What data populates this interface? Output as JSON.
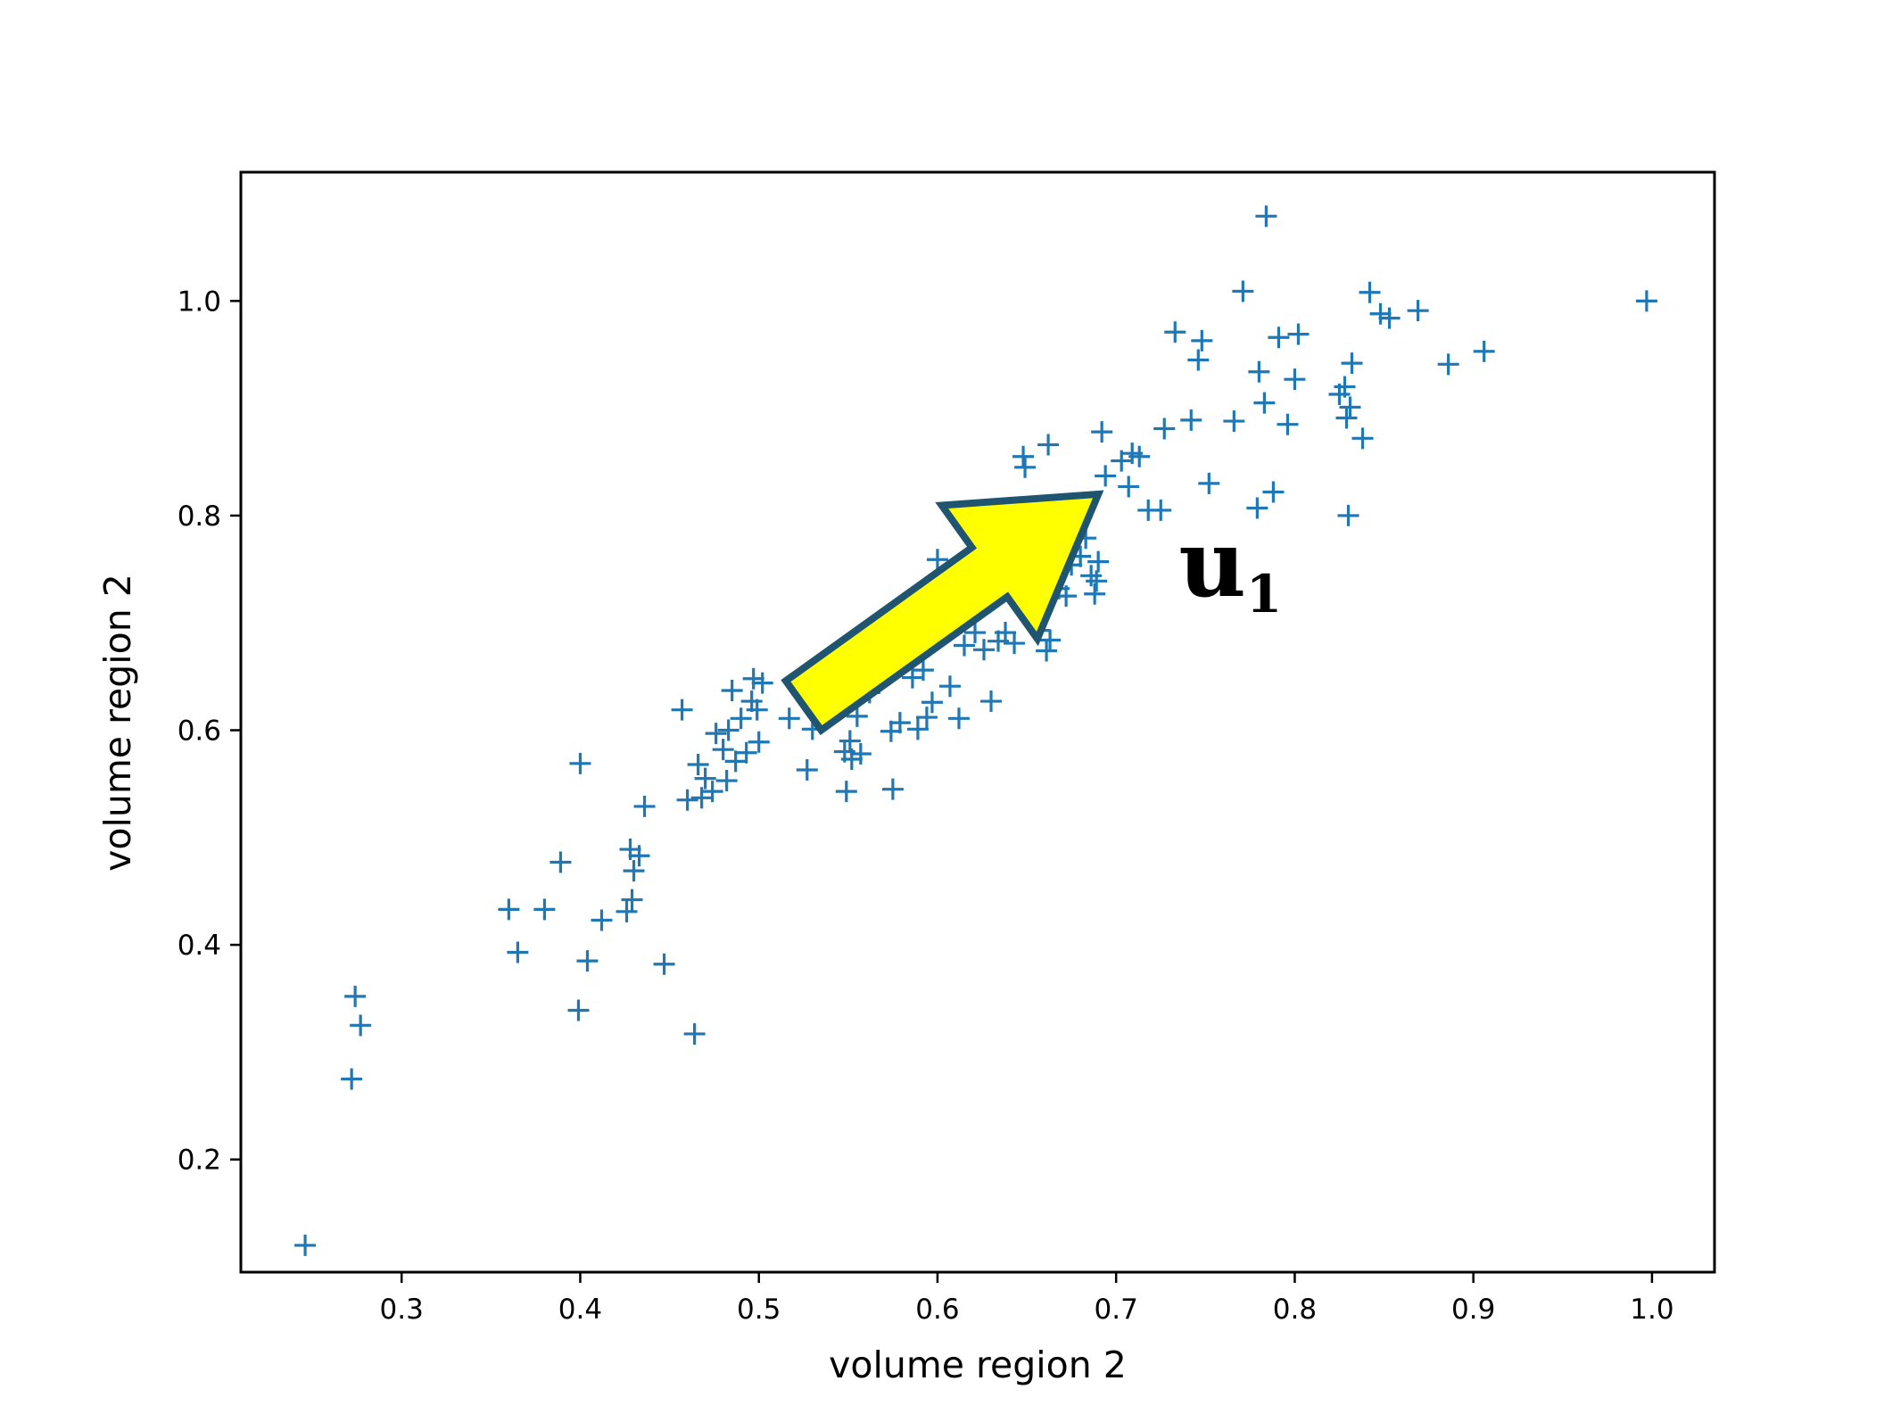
{
  "chart_data": {
    "type": "scatter",
    "xlabel": "volume region 2",
    "ylabel": "volume region 2",
    "xlim": [
      0.21,
      1.035
    ],
    "ylim": [
      0.095,
      1.12
    ],
    "x_ticks": [
      0.3,
      0.4,
      0.5,
      0.6,
      0.7,
      0.8,
      0.9,
      1.0
    ],
    "y_ticks": [
      0.2,
      0.4,
      0.6,
      0.8,
      1.0
    ],
    "grid": false,
    "legend": "none",
    "marker": "plus",
    "marker_color": "#1f77b4",
    "annotation": {
      "main": "u",
      "sub": "1",
      "x": 0.735,
      "y": 0.725
    },
    "arrow": {
      "fill_color": "#ffff00",
      "stroke_color": "#1f5570",
      "tail": [
        0.525,
        0.623
      ],
      "head": [
        0.69,
        0.82
      ]
    },
    "points": [
      [
        0.246,
        0.12
      ],
      [
        0.272,
        0.275
      ],
      [
        0.274,
        0.352
      ],
      [
        0.277,
        0.325
      ],
      [
        0.36,
        0.433
      ],
      [
        0.365,
        0.393
      ],
      [
        0.38,
        0.433
      ],
      [
        0.389,
        0.477
      ],
      [
        0.399,
        0.339
      ],
      [
        0.4,
        0.569
      ],
      [
        0.404,
        0.385
      ],
      [
        0.412,
        0.423
      ],
      [
        0.426,
        0.431
      ],
      [
        0.428,
        0.489
      ],
      [
        0.429,
        0.442
      ],
      [
        0.43,
        0.469
      ],
      [
        0.433,
        0.483
      ],
      [
        0.436,
        0.529
      ],
      [
        0.447,
        0.382
      ],
      [
        0.457,
        0.619
      ],
      [
        0.46,
        0.535
      ],
      [
        0.464,
        0.317
      ],
      [
        0.466,
        0.568
      ],
      [
        0.468,
        0.537
      ],
      [
        0.47,
        0.555
      ],
      [
        0.474,
        0.543
      ],
      [
        0.476,
        0.597
      ],
      [
        0.48,
        0.582
      ],
      [
        0.482,
        0.553
      ],
      [
        0.483,
        0.6
      ],
      [
        0.485,
        0.637
      ],
      [
        0.487,
        0.571
      ],
      [
        0.49,
        0.611
      ],
      [
        0.493,
        0.579
      ],
      [
        0.496,
        0.627
      ],
      [
        0.497,
        0.648
      ],
      [
        0.499,
        0.619
      ],
      [
        0.5,
        0.589
      ],
      [
        0.502,
        0.644
      ],
      [
        0.517,
        0.611
      ],
      [
        0.527,
        0.563
      ],
      [
        0.53,
        0.601
      ],
      [
        0.542,
        0.621
      ],
      [
        0.548,
        0.58
      ],
      [
        0.549,
        0.543
      ],
      [
        0.551,
        0.59
      ],
      [
        0.552,
        0.573
      ],
      [
        0.555,
        0.613
      ],
      [
        0.557,
        0.578
      ],
      [
        0.562,
        0.635
      ],
      [
        0.574,
        0.599
      ],
      [
        0.575,
        0.545
      ],
      [
        0.579,
        0.607
      ],
      [
        0.586,
        0.649
      ],
      [
        0.589,
        0.601
      ],
      [
        0.592,
        0.656
      ],
      [
        0.594,
        0.612
      ],
      [
        0.597,
        0.626
      ],
      [
        0.6,
        0.759
      ],
      [
        0.607,
        0.641
      ],
      [
        0.612,
        0.611
      ],
      [
        0.615,
        0.679
      ],
      [
        0.621,
        0.691
      ],
      [
        0.626,
        0.675
      ],
      [
        0.63,
        0.627
      ],
      [
        0.634,
        0.683
      ],
      [
        0.638,
        0.691
      ],
      [
        0.643,
        0.681
      ],
      [
        0.648,
        0.855
      ],
      [
        0.649,
        0.845
      ],
      [
        0.652,
        0.716
      ],
      [
        0.655,
        0.705
      ],
      [
        0.657,
        0.693
      ],
      [
        0.661,
        0.674
      ],
      [
        0.662,
        0.866
      ],
      [
        0.663,
        0.684
      ],
      [
        0.668,
        0.732
      ],
      [
        0.672,
        0.725
      ],
      [
        0.675,
        0.754
      ],
      [
        0.68,
        0.762
      ],
      [
        0.683,
        0.779
      ],
      [
        0.686,
        0.744
      ],
      [
        0.688,
        0.727
      ],
      [
        0.689,
        0.739
      ],
      [
        0.69,
        0.757
      ],
      [
        0.692,
        0.878
      ],
      [
        0.694,
        0.837
      ],
      [
        0.703,
        0.851
      ],
      [
        0.707,
        0.827
      ],
      [
        0.709,
        0.858
      ],
      [
        0.713,
        0.855
      ],
      [
        0.718,
        0.805
      ],
      [
        0.725,
        0.805
      ],
      [
        0.727,
        0.881
      ],
      [
        0.733,
        0.971
      ],
      [
        0.742,
        0.889
      ],
      [
        0.746,
        0.945
      ],
      [
        0.748,
        0.963
      ],
      [
        0.752,
        0.83
      ],
      [
        0.766,
        0.888
      ],
      [
        0.771,
        1.009
      ],
      [
        0.779,
        0.807
      ],
      [
        0.78,
        0.934
      ],
      [
        0.783,
        0.905
      ],
      [
        0.784,
        1.079
      ],
      [
        0.788,
        0.822
      ],
      [
        0.791,
        0.966
      ],
      [
        0.796,
        0.885
      ],
      [
        0.8,
        0.927
      ],
      [
        0.802,
        0.969
      ],
      [
        0.825,
        0.913
      ],
      [
        0.828,
        0.92
      ],
      [
        0.829,
        0.891
      ],
      [
        0.83,
        0.8
      ],
      [
        0.831,
        0.901
      ],
      [
        0.832,
        0.942
      ],
      [
        0.838,
        0.872
      ],
      [
        0.842,
        1.008
      ],
      [
        0.848,
        0.988
      ],
      [
        0.853,
        0.984
      ],
      [
        0.869,
        0.991
      ],
      [
        0.886,
        0.941
      ],
      [
        0.906,
        0.953
      ],
      [
        0.997,
        1.0
      ]
    ]
  }
}
